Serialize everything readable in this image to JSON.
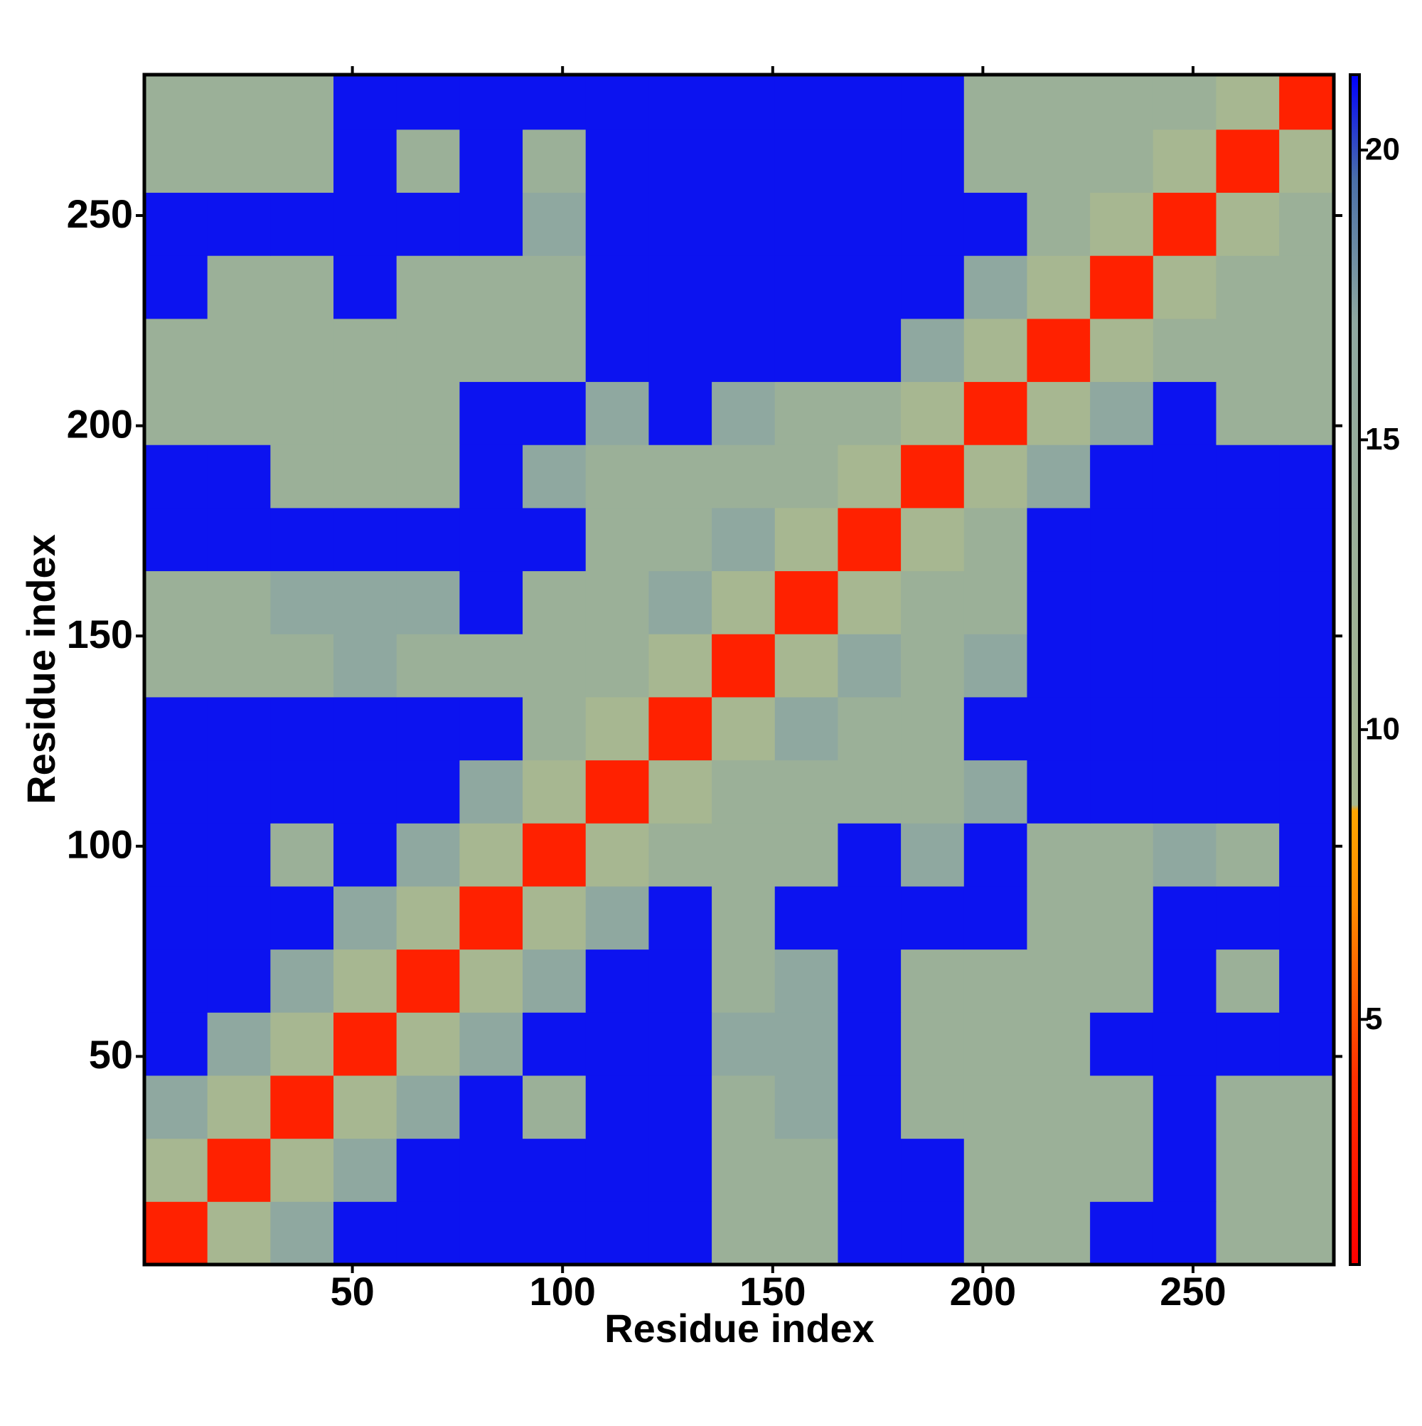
{
  "chart_data": {
    "type": "heatmap",
    "xlabel": "Residue index",
    "ylabel": "Residue index",
    "x_bins": [
      0.5,
      15.5,
      30.5,
      45.5,
      60.5,
      75.5,
      90.5,
      105.5,
      120.5,
      135.5,
      150.5,
      165.5,
      180.5,
      195.5,
      210.5,
      225.5,
      240.5,
      255.5,
      270.5,
      283.5
    ],
    "y_bins": [
      0.5,
      15.5,
      30.5,
      45.5,
      60.5,
      75.5,
      90.5,
      105.5,
      120.5,
      135.5,
      150.5,
      165.5,
      180.5,
      195.5,
      210.5,
      225.5,
      240.5,
      255.5,
      270.5,
      283.5
    ],
    "z": [
      [
        3,
        9,
        17,
        21,
        21,
        21,
        21,
        21,
        21,
        13,
        13,
        21,
        21,
        13,
        13,
        21,
        21,
        13,
        13
      ],
      [
        9,
        3,
        9,
        17,
        21,
        21,
        21,
        21,
        21,
        13,
        13,
        21,
        21,
        13,
        13,
        13,
        21,
        13,
        13
      ],
      [
        17,
        9,
        3,
        9,
        17,
        21,
        13,
        21,
        21,
        13,
        17,
        21,
        13,
        13,
        13,
        13,
        21,
        13,
        13
      ],
      [
        21,
        17,
        9,
        3,
        9,
        17,
        21,
        21,
        21,
        17,
        17,
        21,
        13,
        13,
        13,
        21,
        21,
        21,
        21
      ],
      [
        21,
        21,
        17,
        9,
        3,
        9,
        17,
        21,
        21,
        13,
        17,
        21,
        13,
        13,
        13,
        13,
        21,
        13,
        21
      ],
      [
        21,
        21,
        21,
        17,
        9,
        3,
        9,
        17,
        21,
        13,
        21,
        21,
        21,
        21,
        13,
        13,
        21,
        21,
        21
      ],
      [
        21,
        21,
        13,
        21,
        17,
        9,
        3,
        9,
        13,
        13,
        13,
        21,
        17,
        21,
        13,
        13,
        17,
        13,
        21
      ],
      [
        21,
        21,
        21,
        21,
        21,
        17,
        9,
        3,
        9,
        13,
        13,
        13,
        13,
        17,
        21,
        21,
        21,
        21,
        21
      ],
      [
        21,
        21,
        21,
        21,
        21,
        21,
        13,
        9,
        3,
        9,
        17,
        13,
        13,
        21,
        21,
        21,
        21,
        21,
        21
      ],
      [
        13,
        13,
        13,
        17,
        13,
        13,
        13,
        13,
        9,
        3,
        9,
        17,
        13,
        17,
        21,
        21,
        21,
        21,
        21
      ],
      [
        13,
        13,
        17,
        17,
        17,
        21,
        13,
        13,
        17,
        9,
        3,
        9,
        13,
        13,
        21,
        21,
        21,
        21,
        21
      ],
      [
        21,
        21,
        21,
        21,
        21,
        21,
        21,
        13,
        13,
        17,
        9,
        3,
        9,
        13,
        21,
        21,
        21,
        21,
        21
      ],
      [
        21,
        21,
        13,
        13,
        13,
        21,
        17,
        13,
        13,
        13,
        13,
        9,
        3,
        9,
        17,
        21,
        21,
        21,
        21
      ],
      [
        13,
        13,
        13,
        13,
        13,
        21,
        21,
        17,
        21,
        17,
        13,
        13,
        9,
        3,
        9,
        17,
        21,
        13,
        13
      ],
      [
        13,
        13,
        13,
        13,
        13,
        13,
        13,
        21,
        21,
        21,
        21,
        21,
        17,
        9,
        3,
        9,
        13,
        13,
        13
      ],
      [
        21,
        13,
        13,
        21,
        13,
        13,
        13,
        21,
        21,
        21,
        21,
        21,
        21,
        17,
        9,
        3,
        9,
        13,
        13
      ],
      [
        21,
        21,
        21,
        21,
        21,
        21,
        17,
        21,
        21,
        21,
        21,
        21,
        21,
        21,
        13,
        9,
        3,
        9,
        13
      ],
      [
        13,
        13,
        13,
        21,
        13,
        21,
        13,
        21,
        21,
        21,
        21,
        21,
        21,
        13,
        13,
        13,
        9,
        3,
        9
      ],
      [
        13,
        13,
        13,
        21,
        21,
        21,
        21,
        21,
        21,
        21,
        21,
        21,
        21,
        13,
        13,
        13,
        13,
        9,
        3
      ]
    ],
    "xlim": [
      0.5,
      283.5
    ],
    "ylim": [
      0.5,
      283.5
    ],
    "xticks": [
      50,
      100,
      150,
      200,
      250
    ],
    "yticks": [
      50,
      100,
      150,
      200,
      250
    ],
    "colorbar": {
      "lim": [
        0.77,
        21.3
      ],
      "ticks": [
        5,
        10,
        15,
        20
      ]
    },
    "colormap": [
      {
        "value": 0.77,
        "color": "#ff0000"
      },
      {
        "value": 4,
        "color": "#ff3000"
      },
      {
        "value": 7,
        "color": "#ff8c00"
      },
      {
        "value": 8.6,
        "color": "#ffa500"
      },
      {
        "value": 8.7,
        "color": "#a8b890"
      },
      {
        "value": 17,
        "color": "#8fa8a0"
      },
      {
        "value": 19.5,
        "color": "#4a6fa8"
      },
      {
        "value": 21.3,
        "color": "#0000ff"
      }
    ]
  }
}
